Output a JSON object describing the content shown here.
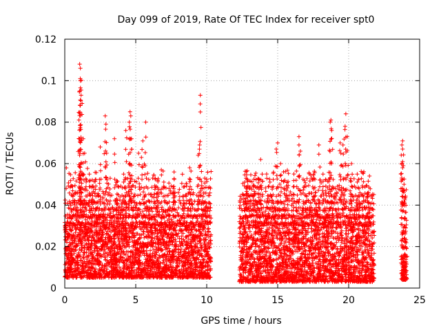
{
  "chart_data": {
    "type": "scatter",
    "title": "Day 099 of 2019, Rate Of TEC Index for receiver spt0",
    "xlabel": "GPS time / hours",
    "ylabel": "ROTI / TECUs",
    "xlim": [
      0,
      25
    ],
    "ylim": [
      0,
      0.12
    ],
    "xticks": [
      0,
      5,
      10,
      15,
      20,
      25
    ],
    "xtick_labels": [
      "0",
      "5",
      "10",
      "15",
      "20",
      "25"
    ],
    "yticks": [
      0,
      0.02,
      0.04,
      0.06,
      0.08,
      0.1,
      0.12
    ],
    "ytick_labels": [
      "0",
      "0.02",
      "0.04",
      "0.06",
      "0.08",
      "0.1",
      "0.12"
    ],
    "grid": true,
    "marker": "+",
    "color": "#ff0000",
    "series": [
      {
        "name": "spt0",
        "segments": [
          {
            "x_range": [
              0.0,
              10.3
            ],
            "baseline": [
              0.005,
              0.03
            ],
            "max_values": [
              0.108,
              0.106,
              0.095,
              0.093,
              0.086,
              0.085,
              0.084,
              0.083,
              0.081,
              0.079,
              0.078,
              0.075,
              0.072,
              0.07,
              0.068,
              0.066,
              0.065,
              0.063,
              0.061,
              0.06
            ]
          },
          {
            "x_range": [
              12.3,
              21.8
            ],
            "baseline": [
              0.003,
              0.03
            ],
            "max_values": [
              0.084,
              0.081,
              0.078,
              0.076,
              0.074,
              0.073,
              0.07,
              0.069,
              0.068,
              0.067,
              0.066,
              0.065,
              0.062,
              0.061,
              0.06,
              0.059
            ]
          },
          {
            "x_range": [
              23.7,
              24.1
            ],
            "baseline": [
              0.004,
              0.015
            ],
            "max_values": [
              0.071,
              0.069,
              0.067,
              0.059,
              0.058,
              0.05,
              0.047,
              0.044
            ]
          }
        ],
        "peaks": [
          {
            "x": 1.05,
            "y": 0.108
          },
          {
            "x": 1.1,
            "y": 0.106
          },
          {
            "x": 1.1,
            "y": 0.1
          },
          {
            "x": 1.05,
            "y": 0.095
          },
          {
            "x": 1.15,
            "y": 0.093
          },
          {
            "x": 1.1,
            "y": 0.088
          },
          {
            "x": 1.0,
            "y": 0.081
          },
          {
            "x": 1.3,
            "y": 0.072
          },
          {
            "x": 1.4,
            "y": 0.065
          },
          {
            "x": 2.85,
            "y": 0.083
          },
          {
            "x": 2.9,
            "y": 0.079
          },
          {
            "x": 2.5,
            "y": 0.068
          },
          {
            "x": 2.95,
            "y": 0.065
          },
          {
            "x": 3.5,
            "y": 0.072
          },
          {
            "x": 4.3,
            "y": 0.076
          },
          {
            "x": 4.6,
            "y": 0.085
          },
          {
            "x": 4.65,
            "y": 0.083
          },
          {
            "x": 4.55,
            "y": 0.08
          },
          {
            "x": 4.7,
            "y": 0.072
          },
          {
            "x": 5.2,
            "y": 0.065
          },
          {
            "x": 5.7,
            "y": 0.08
          },
          {
            "x": 5.5,
            "y": 0.071
          },
          {
            "x": 5.4,
            "y": 0.063
          },
          {
            "x": 6.8,
            "y": 0.057
          },
          {
            "x": 7.7,
            "y": 0.056
          },
          {
            "x": 8.8,
            "y": 0.058
          },
          {
            "x": 9.55,
            "y": 0.093
          },
          {
            "x": 9.5,
            "y": 0.069
          },
          {
            "x": 9.4,
            "y": 0.064
          },
          {
            "x": 0.2,
            "y": 0.041
          },
          {
            "x": 13.8,
            "y": 0.062
          },
          {
            "x": 15.0,
            "y": 0.07
          },
          {
            "x": 14.9,
            "y": 0.067
          },
          {
            "x": 15.2,
            "y": 0.06
          },
          {
            "x": 16.5,
            "y": 0.073
          },
          {
            "x": 16.5,
            "y": 0.069
          },
          {
            "x": 16.6,
            "y": 0.066
          },
          {
            "x": 17.9,
            "y": 0.069
          },
          {
            "x": 18.75,
            "y": 0.081
          },
          {
            "x": 18.7,
            "y": 0.08
          },
          {
            "x": 18.8,
            "y": 0.076
          },
          {
            "x": 19.4,
            "y": 0.07
          },
          {
            "x": 19.45,
            "y": 0.065
          },
          {
            "x": 19.8,
            "y": 0.084
          },
          {
            "x": 19.75,
            "y": 0.078
          },
          {
            "x": 19.9,
            "y": 0.073
          },
          {
            "x": 19.6,
            "y": 0.069
          },
          {
            "x": 20.2,
            "y": 0.06
          },
          {
            "x": 12.3,
            "y": 0.032
          },
          {
            "x": 13.3,
            "y": 0.04
          },
          {
            "x": 21.6,
            "y": 0.044
          },
          {
            "x": 23.8,
            "y": 0.071
          },
          {
            "x": 23.75,
            "y": 0.069
          },
          {
            "x": 23.8,
            "y": 0.067
          },
          {
            "x": 23.85,
            "y": 0.059
          },
          {
            "x": 23.8,
            "y": 0.058
          },
          {
            "x": 23.9,
            "y": 0.05
          },
          {
            "x": 23.8,
            "y": 0.044
          },
          {
            "x": 23.85,
            "y": 0.047
          }
        ]
      }
    ]
  }
}
